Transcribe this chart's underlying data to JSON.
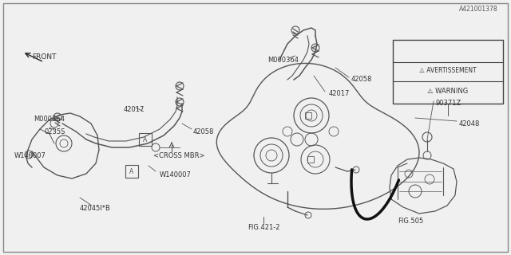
{
  "bg_color": "#f0f0f0",
  "border_color": "#555555",
  "fig_id": "A421001378",
  "line_color": "#555555",
  "dark_line": "#222222",
  "text_color": "#333333",
  "tank_label": "FIG.421-2",
  "fig505_label": "FIG.505",
  "labels_left": {
    "42045IB": [
      0.115,
      0.835,
      "42045I*B"
    ],
    "W140007_r": [
      0.225,
      0.72,
      "W140007"
    ],
    "W140007_l": [
      0.022,
      0.63,
      "W140007"
    ],
    "0235S": [
      0.068,
      0.53,
      "0235S"
    ],
    "M000364_l": [
      0.06,
      0.505,
      "M000364"
    ],
    "42017_l": [
      0.175,
      0.445,
      "42017"
    ],
    "42058_l": [
      0.275,
      0.54,
      "42058"
    ]
  },
  "labels_right": {
    "42017_r": [
      0.46,
      0.35,
      "42017"
    ],
    "42058_r": [
      0.535,
      0.39,
      "42058"
    ],
    "M000364_r": [
      0.38,
      0.27,
      "M000364"
    ],
    "42048": [
      0.59,
      0.49,
      "42048"
    ],
    "90371Z": [
      0.73,
      0.435,
      "90371Z"
    ]
  },
  "cross_mbr": "<CROSS MBR>",
  "warning_text": "⚠ WARNING",
  "avert_text": "⚠ AVERTISSEMENT"
}
